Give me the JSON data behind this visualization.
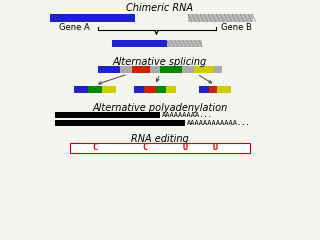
{
  "title_chimeric": "Chimeric RNA",
  "title_splicing": "Alternative splicing",
  "title_polya": "Alternative polyadenylation",
  "title_editing": "RNA editing",
  "gene_a_label": "Gene A",
  "gene_b_label": "Gene B",
  "polya_short": "AAAAAAAAA...",
  "polya_long": "AAAAAAAAAAAA...",
  "editing_letters": [
    "C",
    "C",
    "U",
    "U"
  ],
  "editing_letter_color": "#cc0000",
  "blue_color": "#2222cc",
  "gray_color": "#aaaaaa",
  "red_color": "#cc2200",
  "green_color": "#008800",
  "yellow_color": "#cccc00",
  "black_color": "#000000",
  "white_color": "#ffffff",
  "bg_color": "#f5f5f0",
  "title_fontsize": 7,
  "label_fontsize": 6
}
